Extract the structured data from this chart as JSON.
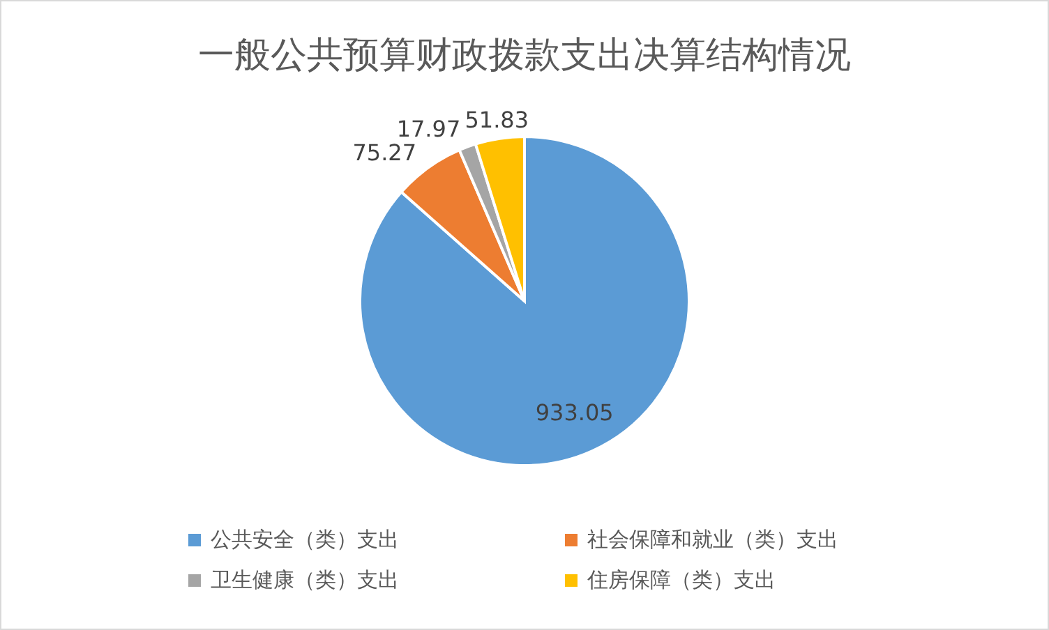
{
  "chart_data": {
    "type": "pie",
    "title": "一般公共预算财政拨款支出决算结构情况",
    "categories": [
      "公共安全（类）支出",
      "社会保障和就业（类）支出",
      "卫生健康（类）支出",
      "住房保障（类）支出"
    ],
    "values": [
      933.05,
      75.27,
      17.97,
      51.83
    ],
    "colors": [
      "#5b9bd5",
      "#ed7d31",
      "#a5a5a5",
      "#ffc000"
    ],
    "data_labels": true,
    "legend": "bottom"
  }
}
